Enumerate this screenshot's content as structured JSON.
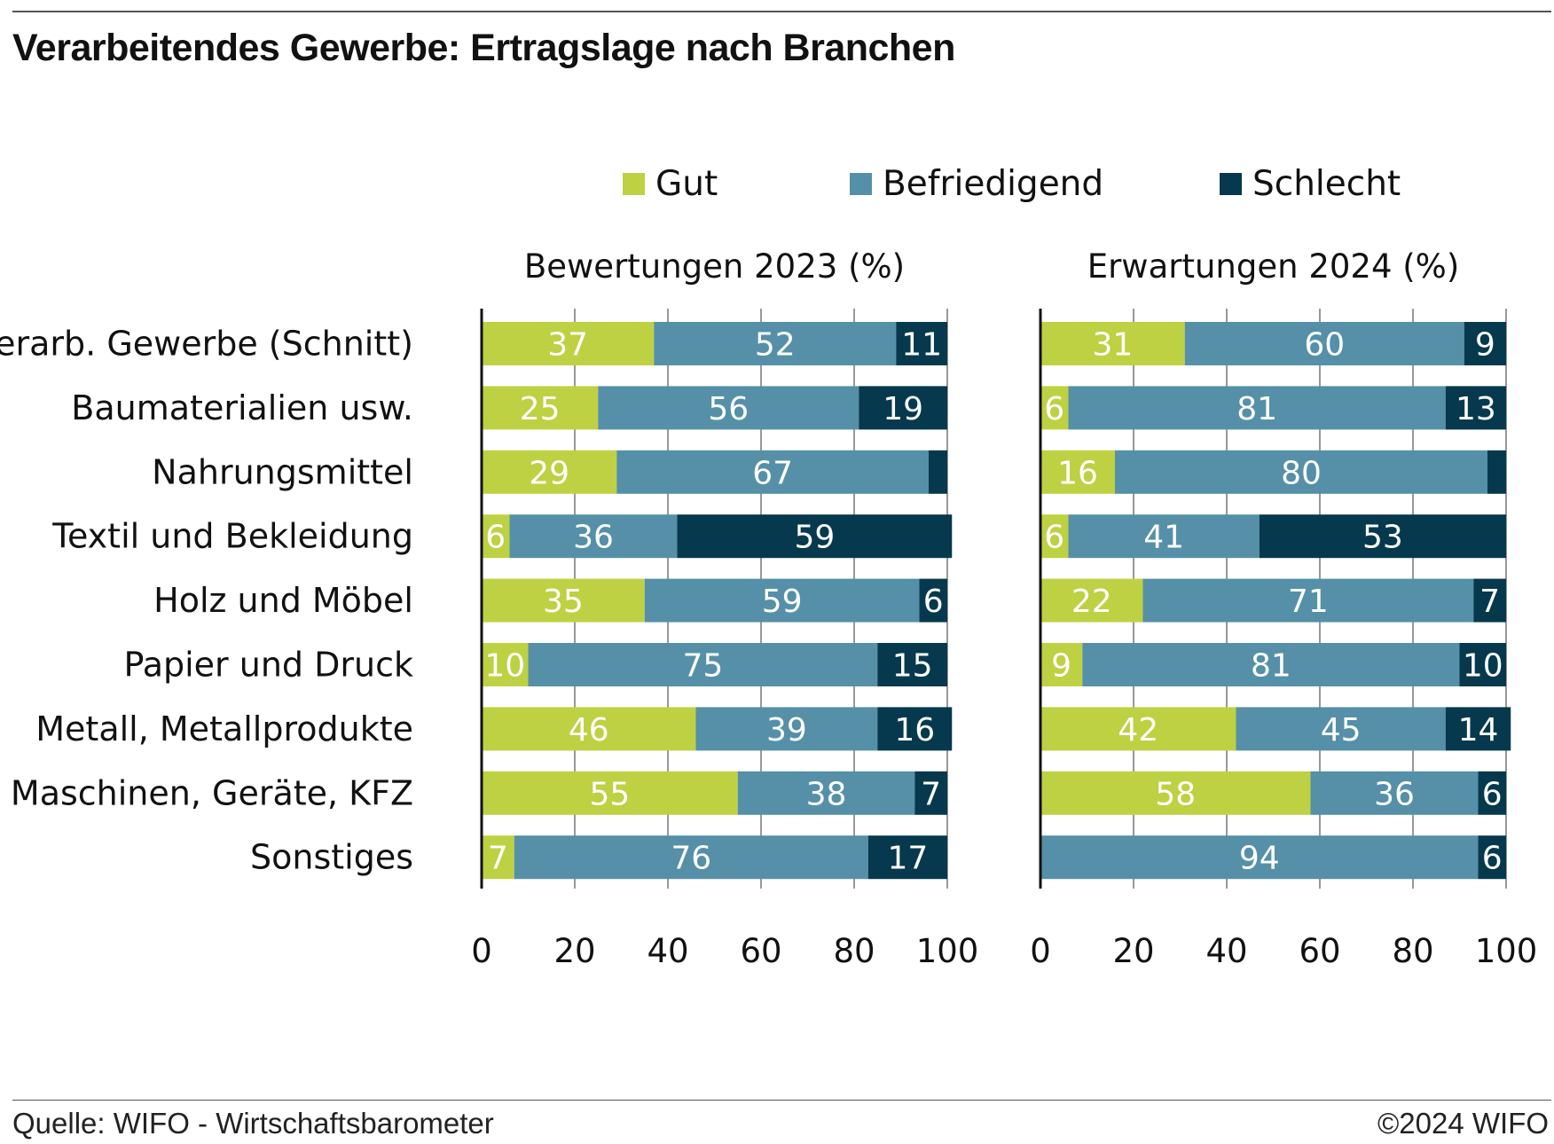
{
  "title": "Verarbeitendes Gewerbe: Ertragslage nach Branchen",
  "source": "Quelle: WIFO - Wirtschaftsbarometer",
  "copyright": "©2024 WIFO",
  "colors": {
    "gut": "#bdd143",
    "befriedigend": "#5590a8",
    "schlecht": "#06394d",
    "grid": "#555555"
  },
  "chart_data": {
    "type": "bar",
    "orientation": "horizontal",
    "stacked": true,
    "legend": [
      "Gut",
      "Befriedigend",
      "Schlecht"
    ],
    "legend_position": "top",
    "categories": [
      "Verarb. Gewerbe (Schnitt)",
      "Baumaterialien usw.",
      "Nahrungsmittel",
      "Textil und Bekleidung",
      "Holz und Möbel",
      "Papier und Druck",
      "Metall, Metallprodukte",
      "Maschinen, Geräte, KFZ",
      "Sonstiges"
    ],
    "xlim": [
      0,
      100
    ],
    "xticks": [
      "0",
      "20",
      "40",
      "60",
      "80",
      "100"
    ],
    "grid": "vertical",
    "panels": [
      {
        "title": "Bewertungen 2023 (%)",
        "series": [
          {
            "name": "Gut",
            "values": [
              37,
              25,
              29,
              6,
              35,
              10,
              46,
              55,
              7
            ]
          },
          {
            "name": "Befriedigend",
            "values": [
              52,
              56,
              67,
              36,
              59,
              75,
              39,
              38,
              76
            ]
          },
          {
            "name": "Schlecht",
            "values": [
              11,
              19,
              4,
              59,
              6,
              15,
              16,
              7,
              17
            ]
          }
        ],
        "labels": [
          [
            "37",
            "25",
            "29",
            "6",
            "35",
            "10",
            "46",
            "55",
            "7"
          ],
          [
            "52",
            "56",
            "67",
            "36",
            "59",
            "75",
            "39",
            "38",
            "76"
          ],
          [
            "11",
            "19",
            "",
            "59",
            "6",
            "15",
            "16",
            "7",
            "17"
          ]
        ]
      },
      {
        "title": "Erwartungen 2024 (%)",
        "series": [
          {
            "name": "Gut",
            "values": [
              31,
              6,
              16,
              6,
              22,
              9,
              42,
              58,
              0
            ]
          },
          {
            "name": "Befriedigend",
            "values": [
              60,
              81,
              80,
              41,
              71,
              81,
              45,
              36,
              94
            ]
          },
          {
            "name": "Schlecht",
            "values": [
              9,
              13,
              4,
              53,
              7,
              10,
              14,
              6,
              6
            ]
          }
        ],
        "labels": [
          [
            "31",
            "6",
            "16",
            "6",
            "22",
            "9",
            "42",
            "58",
            ""
          ],
          [
            "60",
            "81",
            "80",
            "41",
            "71",
            "81",
            "45",
            "36",
            "94"
          ],
          [
            "9",
            "13",
            "",
            "53",
            "7",
            "10",
            "14",
            "6",
            "6"
          ]
        ]
      }
    ]
  }
}
